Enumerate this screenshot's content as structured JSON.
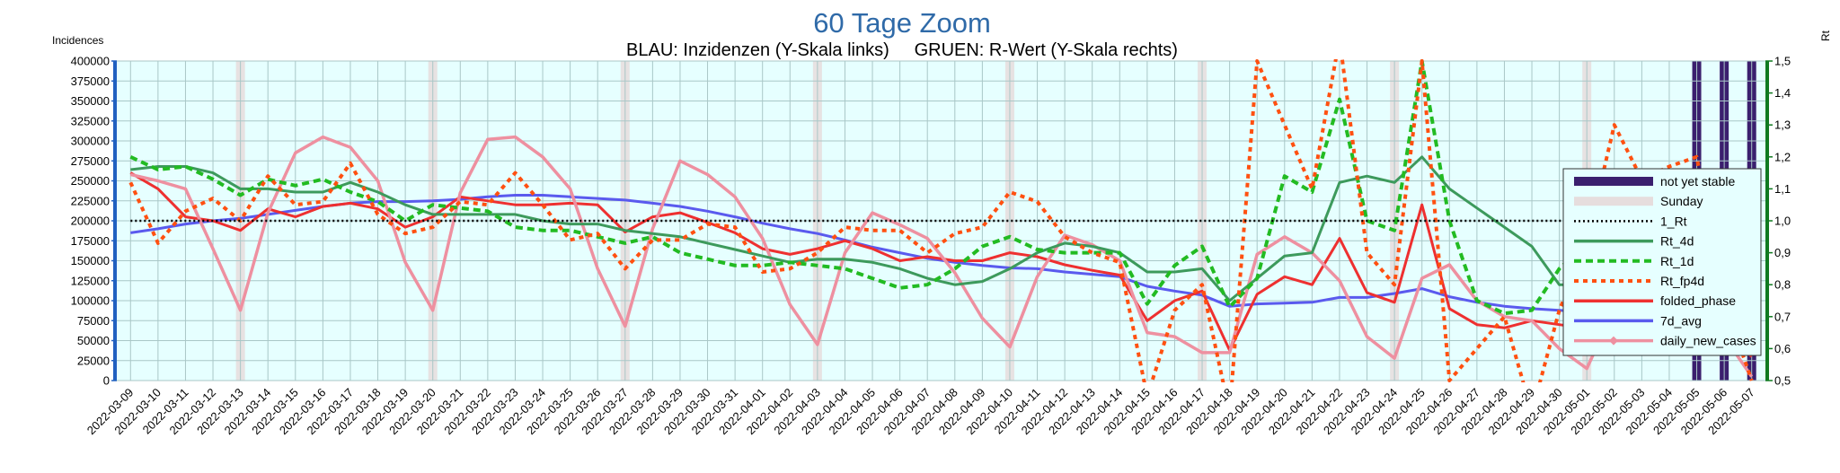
{
  "chart_data": {
    "type": "line",
    "title": "60 Tage Zoom",
    "subtitle": "BLAU: Inzidenzen (Y-Skala links)     GRUEN: R-Wert (Y-Skala rechts)",
    "ylabel_left": "Incidences",
    "ylabel_right": "Rt",
    "ylim_left": [
      0,
      400000
    ],
    "ylim_right": [
      0.5,
      1.5
    ],
    "yticks_left": [
      "0",
      "25000",
      "50000",
      "75000",
      "100000",
      "125000",
      "150000",
      "175000",
      "200000",
      "225000",
      "250000",
      "275000",
      "300000",
      "325000",
      "350000",
      "375000",
      "400000"
    ],
    "yticks_right": [
      "0,5",
      "0,6",
      "0,7",
      "0,8",
      "0,9",
      "1,0",
      "1,1",
      "1,2",
      "1,3",
      "1,4",
      "1,5"
    ],
    "grid": true,
    "legend_position": "right",
    "x": [
      "2022-03-09",
      "2022-03-10",
      "2022-03-11",
      "2022-03-12",
      "2022-03-13",
      "2022-03-14",
      "2022-03-15",
      "2022-03-16",
      "2022-03-17",
      "2022-03-18",
      "2022-03-19",
      "2022-03-20",
      "2022-03-21",
      "2022-03-22",
      "2022-03-23",
      "2022-03-24",
      "2022-03-25",
      "2022-03-26",
      "2022-03-27",
      "2022-03-28",
      "2022-03-29",
      "2022-03-30",
      "2022-03-31",
      "2022-04-01",
      "2022-04-02",
      "2022-04-03",
      "2022-04-04",
      "2022-04-05",
      "2022-04-06",
      "2022-04-07",
      "2022-04-08",
      "2022-04-09",
      "2022-04-10",
      "2022-04-11",
      "2022-04-12",
      "2022-04-13",
      "2022-04-14",
      "2022-04-15",
      "2022-04-16",
      "2022-04-17",
      "2022-04-18",
      "2022-04-19",
      "2022-04-20",
      "2022-04-21",
      "2022-04-22",
      "2022-04-23",
      "2022-04-24",
      "2022-04-25",
      "2022-04-26",
      "2022-04-27",
      "2022-04-28",
      "2022-04-29",
      "2022-04-30",
      "2022-05-01",
      "2022-05-02",
      "2022-05-03",
      "2022-05-04",
      "2022-05-05",
      "2022-05-06",
      "2022-05-07"
    ],
    "sunday_dates": [
      "2022-03-13",
      "2022-03-20",
      "2022-03-27",
      "2022-04-03",
      "2022-04-10",
      "2022-04-17",
      "2022-04-24",
      "2022-05-01"
    ],
    "not_yet_stable_dates": [
      "2022-05-05",
      "2022-05-06",
      "2022-05-07"
    ],
    "series": [
      {
        "name": "not yet stable",
        "kind": "bars",
        "color": "#3b1f6e"
      },
      {
        "name": "Sunday",
        "kind": "bars",
        "color": "#e6dddd"
      },
      {
        "name": "1_Rt",
        "kind": "line",
        "axis": "right",
        "color": "#000000",
        "style": "dotted",
        "values": [
          1,
          1,
          1,
          1,
          1,
          1,
          1,
          1,
          1,
          1,
          1,
          1,
          1,
          1,
          1,
          1,
          1,
          1,
          1,
          1,
          1,
          1,
          1,
          1,
          1,
          1,
          1,
          1,
          1,
          1,
          1,
          1,
          1,
          1,
          1,
          1,
          1,
          1,
          1,
          1,
          1,
          1,
          1,
          1,
          1,
          1,
          1,
          1,
          1,
          1,
          1,
          1,
          1,
          1,
          1,
          1,
          1,
          1,
          1,
          1
        ]
      },
      {
        "name": "Rt_4d",
        "kind": "line",
        "axis": "right",
        "color": "#3d9a5c",
        "style": "solid",
        "values": [
          1.16,
          1.17,
          1.17,
          1.15,
          1.1,
          1.1,
          1.09,
          1.09,
          1.12,
          1.09,
          1.05,
          1.02,
          1.02,
          1.02,
          1.02,
          1.0,
          0.99,
          0.99,
          0.97,
          0.96,
          0.95,
          0.93,
          0.91,
          0.89,
          0.87,
          0.88,
          0.88,
          0.87,
          0.85,
          0.82,
          0.8,
          0.81,
          0.85,
          0.9,
          0.93,
          0.92,
          0.9,
          0.84,
          0.84,
          0.85,
          0.75,
          0.82,
          0.89,
          0.9,
          1.12,
          1.14,
          1.12,
          1.2,
          1.1,
          1.04,
          0.98,
          0.92,
          0.8,
          0.8,
          0.85,
          0.86,
          0.86,
          0.84,
          0.82,
          0.78
        ]
      },
      {
        "name": "Rt_1d",
        "kind": "line",
        "axis": "right",
        "color": "#22bb22",
        "style": "dashed",
        "values": [
          1.2,
          1.16,
          1.17,
          1.13,
          1.08,
          1.13,
          1.11,
          1.13,
          1.09,
          1.06,
          1.0,
          1.05,
          1.04,
          1.03,
          0.98,
          0.97,
          0.97,
          0.95,
          0.93,
          0.95,
          0.9,
          0.88,
          0.86,
          0.86,
          0.87,
          0.86,
          0.85,
          0.82,
          0.79,
          0.8,
          0.85,
          0.92,
          0.95,
          0.91,
          0.9,
          0.9,
          0.9,
          0.74,
          0.86,
          0.92,
          0.73,
          0.82,
          1.14,
          1.09,
          1.38,
          1.0,
          0.97,
          1.5,
          1.0,
          0.75,
          0.71,
          0.72,
          0.85,
          0.93,
          0.83,
          0.81,
          0.83,
          0.87,
          0.83,
          0.79
        ]
      },
      {
        "name": "Rt_fp4d",
        "kind": "line",
        "axis": "right",
        "color": "#ff5010",
        "style": "dotted",
        "values": [
          1.12,
          0.93,
          1.03,
          1.07,
          1.0,
          1.14,
          1.05,
          1.06,
          1.18,
          1.02,
          0.96,
          0.98,
          1.06,
          1.05,
          1.15,
          1.05,
          0.94,
          0.96,
          0.85,
          0.94,
          0.94,
          0.99,
          0.98,
          0.84,
          0.85,
          0.9,
          0.98,
          0.97,
          0.97,
          0.9,
          0.96,
          0.98,
          1.09,
          1.06,
          0.95,
          0.9,
          0.87,
          0.45,
          0.72,
          0.8,
          0.4,
          1.5,
          1.3,
          1.1,
          1.57,
          0.9,
          0.8,
          1.5,
          0.5,
          0.6,
          0.7,
          0.4,
          0.72,
          0.93,
          1.3,
          1.13,
          1.17,
          1.2,
          0.75,
          0.5
        ]
      },
      {
        "name": "folded_phase",
        "kind": "line",
        "axis": "left",
        "color": "#ee3030",
        "style": "solid",
        "values": [
          260000,
          240000,
          205000,
          200000,
          188000,
          215000,
          205000,
          218000,
          222000,
          215000,
          192000,
          205000,
          230000,
          225000,
          220000,
          220000,
          222000,
          220000,
          186000,
          205000,
          210000,
          198000,
          185000,
          165000,
          158000,
          165000,
          175000,
          165000,
          150000,
          155000,
          150000,
          150000,
          160000,
          155000,
          145000,
          138000,
          132000,
          75000,
          100000,
          112000,
          38000,
          108000,
          130000,
          120000,
          178000,
          110000,
          98000,
          220000,
          90000,
          70000,
          66000,
          75000,
          70000,
          65000,
          85000,
          80000,
          76000,
          78000,
          58000,
          30000
        ]
      },
      {
        "name": "7d_avg",
        "kind": "line",
        "axis": "left",
        "color": "#5a5aee",
        "style": "solid",
        "values": [
          185000,
          190000,
          196000,
          200000,
          203000,
          208000,
          213000,
          218000,
          222000,
          224000,
          224000,
          225000,
          227000,
          230000,
          232000,
          232000,
          230000,
          228000,
          226000,
          222000,
          218000,
          212000,
          205000,
          197000,
          190000,
          184000,
          176000,
          167000,
          160000,
          153000,
          148000,
          144000,
          141000,
          140000,
          136000,
          133000,
          130000,
          118000,
          112000,
          107000,
          93000,
          96000,
          97000,
          98000,
          104000,
          104000,
          109000,
          115000,
          105000,
          98000,
          93000,
          90000,
          88000,
          86000,
          80000,
          76000,
          72000,
          72000,
          68000,
          65000
        ]
      },
      {
        "name": "daily_new_cases",
        "kind": "line",
        "axis": "left",
        "color": "#ee90a0",
        "style": "solid",
        "marker": "diamond",
        "values": [
          258000,
          250000,
          240000,
          165000,
          88000,
          210000,
          285000,
          305000,
          292000,
          250000,
          148000,
          88000,
          235000,
          302000,
          305000,
          280000,
          240000,
          140000,
          68000,
          190000,
          275000,
          258000,
          230000,
          178000,
          95000,
          45000,
          160000,
          210000,
          195000,
          178000,
          135000,
          78000,
          42000,
          130000,
          182000,
          170000,
          150000,
          60000,
          55000,
          35000,
          35000,
          158000,
          180000,
          160000,
          125000,
          55000,
          28000,
          128000,
          145000,
          100000,
          80000,
          75000,
          40000,
          15000,
          90000,
          105000,
          95000,
          80000,
          55000,
          5000
        ]
      }
    ]
  }
}
